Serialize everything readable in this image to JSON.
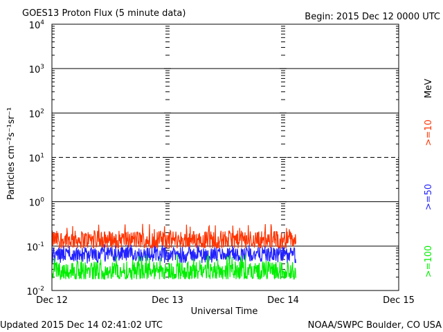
{
  "chart_data": {
    "type": "line",
    "title": "GOES13 Proton Flux (5 minute data)",
    "begin_label": "Begin: 2015 Dec 12 0000 UTC",
    "xlabel": "Universal Time",
    "ylabel": "Particles cm⁻²s⁻¹sr⁻¹",
    "y_scale": "log",
    "ylim": [
      0.01,
      10000
    ],
    "y_ticks": [
      {
        "base": "10",
        "exp": "4"
      },
      {
        "base": "10",
        "exp": "3"
      },
      {
        "base": "10",
        "exp": "2"
      },
      {
        "base": "10",
        "exp": "1"
      },
      {
        "base": "10",
        "exp": "0"
      },
      {
        "base": "10",
        "exp": "-1"
      },
      {
        "base": "10",
        "exp": "-2"
      }
    ],
    "x_ticks": [
      "Dec 12",
      "Dec 13",
      "Dec 14",
      "Dec 15"
    ],
    "xlim_days": [
      0,
      3
    ],
    "data_end_day": 2.11,
    "grid": "horizontal lines at each decade; dashed at 10^1",
    "legend_position": "right-vertical",
    "legend_unit": "MeV",
    "series": [
      {
        "name": ">=10",
        "color": "#ff3300",
        "min": 0.09,
        "typical": 0.14,
        "max": 0.32
      },
      {
        "name": ">=50",
        "color": "#2222ff",
        "min": 0.04,
        "typical": 0.065,
        "max": 0.11
      },
      {
        "name": ">=100",
        "color": "#00ee00",
        "min": 0.018,
        "typical": 0.028,
        "max": 0.065
      }
    ]
  },
  "footer": {
    "updated": "Updated 2015 Dec 14 02:41:02 UTC",
    "source": "NOAA/SWPC Boulder, CO USA"
  }
}
